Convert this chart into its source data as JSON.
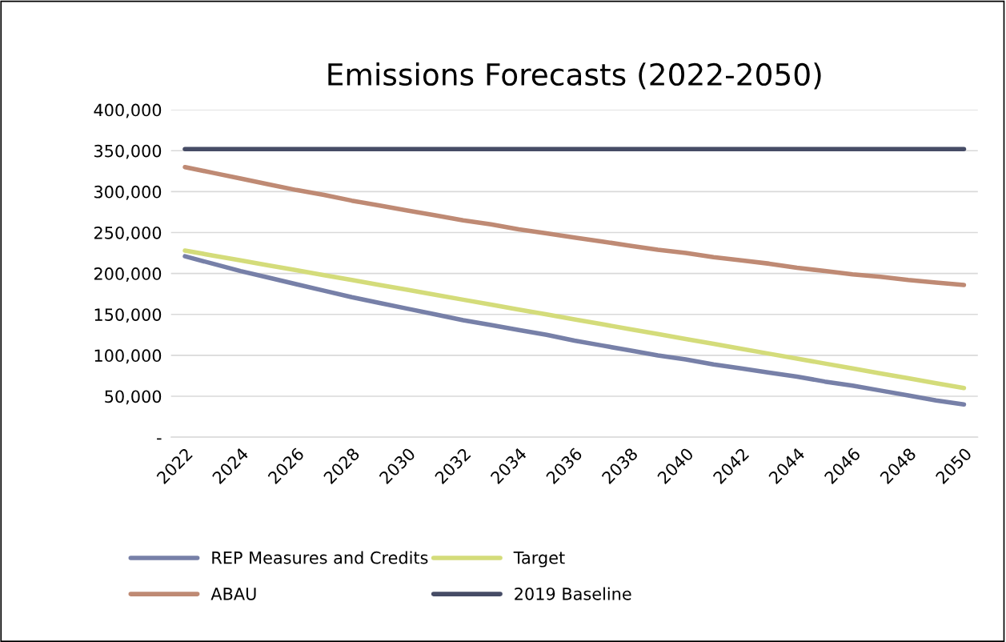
{
  "chart_data": {
    "type": "line",
    "title": "Emissions Forecasts (2022-2050)",
    "categories": [
      "2022",
      null,
      "2024",
      null,
      "2026",
      null,
      "2028",
      null,
      "2030",
      null,
      "2032",
      null,
      "2034",
      null,
      "2036",
      null,
      "2038",
      null,
      "2040",
      null,
      "2042",
      null,
      "2044",
      null,
      "2046",
      null,
      "2048",
      null,
      "2050"
    ],
    "series": [
      {
        "name": "REP Measures and Credits",
        "color": "#7780a8",
        "values": [
          221000,
          212000,
          203000,
          195000,
          187000,
          179000,
          171000,
          164000,
          157000,
          150000,
          143000,
          137000,
          131000,
          125000,
          118000,
          112000,
          106000,
          100000,
          95000,
          89000,
          84000,
          79000,
          74000,
          68000,
          63000,
          57000,
          51000,
          45000,
          40000
        ]
      },
      {
        "name": "Target",
        "color": "#d4dc7a",
        "values": [
          228000,
          222000,
          216000,
          210000,
          204000,
          198000,
          192000,
          186000,
          180000,
          174000,
          168000,
          162000,
          156000,
          150000,
          144000,
          138000,
          132000,
          126000,
          120000,
          114000,
          108000,
          102000,
          96000,
          90000,
          84000,
          78000,
          72000,
          66000,
          60000
        ]
      },
      {
        "name": "ABAU",
        "color": "#bf8a74",
        "values": [
          330000,
          323000,
          316000,
          309000,
          302000,
          296000,
          289000,
          283000,
          277000,
          271000,
          265000,
          260000,
          254000,
          249000,
          244000,
          239000,
          234000,
          229000,
          225000,
          220000,
          216000,
          212000,
          207000,
          203000,
          199000,
          196000,
          192000,
          189000,
          186000
        ]
      },
      {
        "name": "2019 Baseline",
        "color": "#464c66",
        "values": [
          352000,
          352000,
          352000,
          352000,
          352000,
          352000,
          352000,
          352000,
          352000,
          352000,
          352000,
          352000,
          352000,
          352000,
          352000,
          352000,
          352000,
          352000,
          352000,
          352000,
          352000,
          352000,
          352000,
          352000,
          352000,
          352000,
          352000,
          352000,
          352000
        ]
      }
    ],
    "ylim": [
      0,
      400000
    ],
    "yticks": [
      {
        "value": 0,
        "label": "-"
      },
      {
        "value": 50000,
        "label": "50,000"
      },
      {
        "value": 100000,
        "label": "100,000"
      },
      {
        "value": 150000,
        "label": "150,000"
      },
      {
        "value": 200000,
        "label": "200,000"
      },
      {
        "value": 250000,
        "label": "250,000"
      },
      {
        "value": 300000,
        "label": "300,000"
      },
      {
        "value": 350000,
        "label": "350,000"
      },
      {
        "value": 400000,
        "label": "400,000"
      }
    ],
    "grid": "y",
    "legend": "bottom",
    "marker": "none",
    "line_style": "solid"
  }
}
